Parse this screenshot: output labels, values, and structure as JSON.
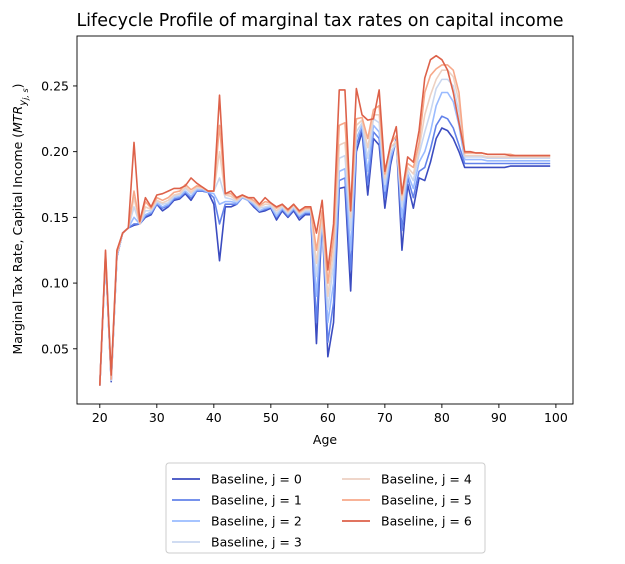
{
  "chart_data": {
    "type": "line",
    "title": "Lifecycle Profile of marginal tax rates on capital income",
    "xlabel": "Age",
    "ylabel": "Marginal Tax Rate, Capital Income ($MTR_{y_{j,s}}$)",
    "xlim": [
      16,
      103
    ],
    "ylim": [
      0.008,
      0.288
    ],
    "xticks": [
      20,
      30,
      40,
      50,
      60,
      70,
      80,
      90,
      100
    ],
    "xtick_labels": [
      "20",
      "30",
      "40",
      "50",
      "60",
      "70",
      "80",
      "90",
      "100"
    ],
    "yticks": [
      0.05,
      0.1,
      0.15,
      0.2,
      0.25
    ],
    "ytick_labels": [
      "0.05",
      "0.10",
      "0.15",
      "0.20",
      "0.25"
    ],
    "legend_placement": "below plot, two columns",
    "x": [
      20,
      21,
      22,
      23,
      24,
      25,
      26,
      27,
      28,
      29,
      30,
      31,
      32,
      33,
      34,
      35,
      36,
      37,
      38,
      39,
      40,
      41,
      42,
      43,
      44,
      45,
      46,
      47,
      48,
      49,
      50,
      51,
      52,
      53,
      54,
      55,
      56,
      57,
      58,
      59,
      60,
      61,
      62,
      63,
      64,
      65,
      66,
      67,
      68,
      69,
      70,
      71,
      72,
      73,
      74,
      75,
      76,
      77,
      78,
      79,
      80,
      81,
      82,
      83,
      84,
      85,
      86,
      87,
      88,
      89,
      90,
      91,
      92,
      93,
      94,
      95,
      96,
      97,
      98,
      99
    ],
    "series": [
      {
        "name": "Baseline, j = 0",
        "color": "#3b4cc0",
        "values": [
          0.022,
          0.12,
          0.025,
          0.12,
          0.138,
          0.142,
          0.144,
          0.145,
          0.15,
          0.152,
          0.16,
          0.155,
          0.158,
          0.163,
          0.164,
          0.168,
          0.163,
          0.17,
          0.17,
          0.169,
          0.16,
          0.117,
          0.158,
          0.158,
          0.16,
          0.165,
          0.163,
          0.158,
          0.154,
          0.155,
          0.157,
          0.148,
          0.155,
          0.15,
          0.155,
          0.148,
          0.152,
          0.152,
          0.054,
          0.15,
          0.044,
          0.07,
          0.172,
          0.173,
          0.094,
          0.2,
          0.215,
          0.167,
          0.21,
          0.205,
          0.157,
          0.19,
          0.21,
          0.125,
          0.175,
          0.157,
          0.18,
          0.178,
          0.192,
          0.21,
          0.218,
          0.216,
          0.21,
          0.2,
          0.188,
          0.188,
          0.188,
          0.188,
          0.188,
          0.188,
          0.188,
          0.188,
          0.189,
          0.189,
          0.189,
          0.189,
          0.189,
          0.189,
          0.189,
          0.189
        ]
      },
      {
        "name": "Baseline, j = 1",
        "color": "#6282ea",
        "values": [
          0.022,
          0.12,
          0.026,
          0.12,
          0.138,
          0.142,
          0.145,
          0.145,
          0.151,
          0.153,
          0.16,
          0.157,
          0.159,
          0.164,
          0.165,
          0.169,
          0.165,
          0.17,
          0.17,
          0.169,
          0.165,
          0.145,
          0.16,
          0.16,
          0.16,
          0.165,
          0.163,
          0.159,
          0.155,
          0.156,
          0.158,
          0.15,
          0.156,
          0.151,
          0.156,
          0.15,
          0.153,
          0.153,
          0.07,
          0.15,
          0.055,
          0.085,
          0.178,
          0.18,
          0.11,
          0.205,
          0.218,
          0.175,
          0.215,
          0.21,
          0.165,
          0.193,
          0.21,
          0.14,
          0.18,
          0.165,
          0.185,
          0.188,
          0.202,
          0.22,
          0.227,
          0.225,
          0.218,
          0.205,
          0.191,
          0.191,
          0.191,
          0.191,
          0.191,
          0.191,
          0.191,
          0.191,
          0.191,
          0.191,
          0.191,
          0.191,
          0.191,
          0.191,
          0.191,
          0.191
        ]
      },
      {
        "name": "Baseline, j = 2",
        "color": "#9abbff",
        "values": [
          0.022,
          0.12,
          0.026,
          0.121,
          0.138,
          0.142,
          0.15,
          0.145,
          0.152,
          0.154,
          0.161,
          0.158,
          0.16,
          0.165,
          0.166,
          0.17,
          0.166,
          0.171,
          0.171,
          0.169,
          0.168,
          0.16,
          0.162,
          0.162,
          0.161,
          0.165,
          0.163,
          0.16,
          0.155,
          0.157,
          0.158,
          0.151,
          0.157,
          0.152,
          0.157,
          0.151,
          0.154,
          0.154,
          0.09,
          0.15,
          0.07,
          0.1,
          0.185,
          0.187,
          0.125,
          0.21,
          0.22,
          0.185,
          0.22,
          0.215,
          0.17,
          0.196,
          0.208,
          0.15,
          0.183,
          0.172,
          0.192,
          0.2,
          0.215,
          0.235,
          0.245,
          0.245,
          0.238,
          0.22,
          0.194,
          0.194,
          0.194,
          0.194,
          0.193,
          0.193,
          0.193,
          0.193,
          0.193,
          0.193,
          0.193,
          0.193,
          0.193,
          0.193,
          0.193,
          0.193
        ]
      },
      {
        "name": "Baseline, j = 3",
        "color": "#c9d7f0",
        "values": [
          0.022,
          0.121,
          0.026,
          0.121,
          0.138,
          0.142,
          0.158,
          0.145,
          0.155,
          0.155,
          0.162,
          0.16,
          0.161,
          0.166,
          0.167,
          0.172,
          0.168,
          0.172,
          0.172,
          0.17,
          0.17,
          0.18,
          0.165,
          0.164,
          0.162,
          0.166,
          0.164,
          0.161,
          0.157,
          0.158,
          0.159,
          0.153,
          0.158,
          0.153,
          0.158,
          0.152,
          0.155,
          0.155,
          0.105,
          0.15,
          0.08,
          0.115,
          0.195,
          0.197,
          0.14,
          0.215,
          0.222,
          0.195,
          0.225,
          0.222,
          0.175,
          0.2,
          0.206,
          0.158,
          0.186,
          0.178,
          0.198,
          0.215,
          0.23,
          0.248,
          0.255,
          0.255,
          0.25,
          0.23,
          0.196,
          0.196,
          0.196,
          0.196,
          0.195,
          0.195,
          0.195,
          0.195,
          0.195,
          0.195,
          0.195,
          0.195,
          0.195,
          0.195,
          0.195,
          0.195
        ]
      },
      {
        "name": "Baseline, j = 4",
        "color": "#edd1c2",
        "values": [
          0.022,
          0.122,
          0.027,
          0.122,
          0.138,
          0.142,
          0.165,
          0.145,
          0.158,
          0.156,
          0.163,
          0.161,
          0.163,
          0.167,
          0.168,
          0.173,
          0.169,
          0.173,
          0.172,
          0.17,
          0.17,
          0.2,
          0.167,
          0.166,
          0.163,
          0.166,
          0.164,
          0.162,
          0.158,
          0.16,
          0.16,
          0.155,
          0.159,
          0.154,
          0.159,
          0.153,
          0.156,
          0.156,
          0.115,
          0.152,
          0.09,
          0.125,
          0.205,
          0.207,
          0.15,
          0.22,
          0.224,
          0.203,
          0.228,
          0.228,
          0.18,
          0.203,
          0.208,
          0.163,
          0.188,
          0.183,
          0.202,
          0.228,
          0.243,
          0.255,
          0.262,
          0.262,
          0.257,
          0.238,
          0.197,
          0.197,
          0.197,
          0.197,
          0.196,
          0.196,
          0.196,
          0.196,
          0.196,
          0.196,
          0.196,
          0.196,
          0.196,
          0.196,
          0.196,
          0.196
        ]
      },
      {
        "name": "Baseline, j = 5",
        "color": "#f7a889",
        "values": [
          0.022,
          0.123,
          0.027,
          0.123,
          0.138,
          0.142,
          0.17,
          0.146,
          0.162,
          0.157,
          0.165,
          0.163,
          0.165,
          0.169,
          0.17,
          0.175,
          0.171,
          0.174,
          0.173,
          0.17,
          0.17,
          0.22,
          0.168,
          0.168,
          0.164,
          0.167,
          0.165,
          0.163,
          0.159,
          0.162,
          0.161,
          0.157,
          0.16,
          0.155,
          0.16,
          0.154,
          0.157,
          0.157,
          0.125,
          0.155,
          0.1,
          0.135,
          0.22,
          0.222,
          0.155,
          0.225,
          0.226,
          0.21,
          0.232,
          0.235,
          0.183,
          0.206,
          0.212,
          0.167,
          0.191,
          0.188,
          0.207,
          0.245,
          0.258,
          0.263,
          0.266,
          0.266,
          0.262,
          0.245,
          0.199,
          0.199,
          0.199,
          0.199,
          0.198,
          0.198,
          0.198,
          0.198,
          0.198,
          0.197,
          0.197,
          0.197,
          0.197,
          0.197,
          0.197,
          0.197
        ]
      },
      {
        "name": "Baseline, j = 6",
        "color": "#dd6149",
        "values": [
          0.022,
          0.125,
          0.03,
          0.125,
          0.138,
          0.142,
          0.207,
          0.147,
          0.165,
          0.158,
          0.167,
          0.168,
          0.17,
          0.172,
          0.172,
          0.174,
          0.18,
          0.176,
          0.173,
          0.17,
          0.17,
          0.243,
          0.168,
          0.17,
          0.165,
          0.167,
          0.165,
          0.165,
          0.16,
          0.165,
          0.161,
          0.158,
          0.16,
          0.156,
          0.16,
          0.155,
          0.158,
          0.158,
          0.138,
          0.163,
          0.11,
          0.145,
          0.247,
          0.247,
          0.155,
          0.248,
          0.228,
          0.224,
          0.225,
          0.247,
          0.185,
          0.205,
          0.219,
          0.168,
          0.196,
          0.192,
          0.216,
          0.256,
          0.27,
          0.273,
          0.27,
          0.262,
          0.245,
          0.222,
          0.2,
          0.2,
          0.199,
          0.199,
          0.198,
          0.198,
          0.198,
          0.198,
          0.197,
          0.197,
          0.197,
          0.197,
          0.197,
          0.197,
          0.197,
          0.197
        ]
      }
    ]
  }
}
